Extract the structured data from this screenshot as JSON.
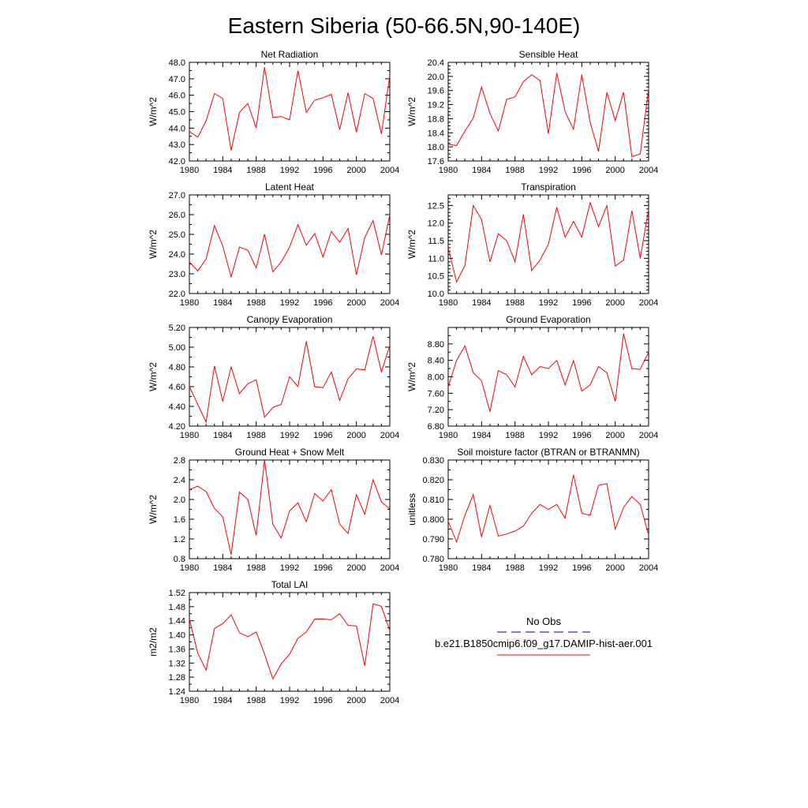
{
  "page_title": "Eastern Siberia (50-66.5N,90-140E)",
  "colors": {
    "model_line": "#ff0000",
    "obs_line": "#0000b4",
    "frame": "#000000"
  },
  "legend": {
    "obs_label": "No Obs",
    "model_label": "b.e21.B1850cmip6.f09_g17.DAMIP-hist-aer.001"
  },
  "chart_data": [
    {
      "type": "line",
      "title": "Net Radiation",
      "ylabel": "W/m^2",
      "xlim": [
        1980,
        2004
      ],
      "ylim": [
        42.0,
        48.0
      ],
      "xticks": [
        "1980",
        "1984",
        "1988",
        "1992",
        "1996",
        "2000",
        "2004"
      ],
      "yticks": [
        "42.0",
        "43.0",
        "44.0",
        "45.0",
        "46.0",
        "47.0",
        "48.0"
      ],
      "yticks_minor": 1,
      "x": [
        1980,
        1981,
        1982,
        1983,
        1984,
        1985,
        1986,
        1987,
        1988,
        1989,
        1990,
        1991,
        1992,
        1993,
        1994,
        1995,
        1996,
        1997,
        1998,
        1999,
        2000,
        2001,
        2002,
        2003,
        2004
      ],
      "series": [
        {
          "values": [
            43.8,
            43.45,
            44.45,
            46.1,
            45.8,
            42.65,
            44.95,
            45.5,
            44.0,
            47.7,
            44.65,
            44.7,
            44.5,
            47.5,
            44.95,
            45.7,
            45.85,
            46.05,
            43.9,
            46.15,
            43.75,
            46.1,
            45.8,
            43.65,
            47.2
          ]
        }
      ]
    },
    {
      "type": "line",
      "title": "Sensible Heat",
      "ylabel": "W/m^2",
      "xlim": [
        1980,
        2004
      ],
      "ylim": [
        17.6,
        20.4
      ],
      "xticks": [
        "1980",
        "1984",
        "1988",
        "1992",
        "1996",
        "2000",
        "2004"
      ],
      "yticks": [
        "17.6",
        "18.0",
        "18.4",
        "18.8",
        "19.2",
        "19.6",
        "20.0",
        "20.4"
      ],
      "yticks_minor": 3,
      "x": [
        1980,
        1981,
        1982,
        1983,
        1984,
        1985,
        1986,
        1987,
        1988,
        1989,
        1990,
        1991,
        1992,
        1993,
        1994,
        1995,
        1996,
        1997,
        1998,
        1999,
        2000,
        2001,
        2002,
        2003,
        2004
      ],
      "series": [
        {
          "values": [
            18.07,
            18.04,
            18.45,
            18.82,
            19.7,
            18.95,
            18.45,
            19.35,
            19.42,
            19.85,
            20.05,
            19.88,
            18.37,
            20.1,
            19.0,
            18.5,
            20.05,
            18.7,
            17.87,
            19.55,
            18.75,
            19.55,
            17.72,
            17.8,
            19.65
          ]
        }
      ]
    },
    {
      "type": "line",
      "title": "Latent Heat",
      "ylabel": "W/m^2",
      "xlim": [
        1980,
        2004
      ],
      "ylim": [
        22.0,
        27.0
      ],
      "xticks": [
        "1980",
        "1984",
        "1988",
        "1992",
        "1996",
        "2000",
        "2004"
      ],
      "yticks": [
        "22.0",
        "23.0",
        "24.0",
        "25.0",
        "26.0",
        "27.0"
      ],
      "yticks_minor": 1,
      "x": [
        1980,
        1981,
        1982,
        1983,
        1984,
        1985,
        1986,
        1987,
        1988,
        1989,
        1990,
        1991,
        1992,
        1993,
        1994,
        1995,
        1996,
        1997,
        1998,
        1999,
        2000,
        2001,
        2002,
        2003,
        2004
      ],
      "series": [
        {
          "values": [
            23.6,
            23.15,
            23.75,
            25.45,
            24.4,
            22.85,
            24.35,
            24.2,
            23.3,
            25.0,
            23.1,
            23.6,
            24.35,
            25.5,
            24.45,
            25.05,
            23.85,
            25.15,
            24.6,
            25.3,
            22.95,
            24.85,
            25.7,
            23.95,
            26.0
          ]
        }
      ]
    },
    {
      "type": "line",
      "title": "Transpiration",
      "ylabel": "W/m^2",
      "xlim": [
        1980,
        2004
      ],
      "ylim": [
        10.0,
        12.8
      ],
      "xticks": [
        "1980",
        "1984",
        "1988",
        "1992",
        "1996",
        "2000",
        "2004"
      ],
      "yticks": [
        "10.0",
        "10.5",
        "11.0",
        "11.5",
        "12.0",
        "12.5"
      ],
      "yticks_minor": 4,
      "x": [
        1980,
        1981,
        1982,
        1983,
        1984,
        1985,
        1986,
        1987,
        1988,
        1989,
        1990,
        1991,
        1992,
        1993,
        1994,
        1995,
        1996,
        1997,
        1998,
        1999,
        2000,
        2001,
        2002,
        2003,
        2004
      ],
      "series": [
        {
          "values": [
            11.3,
            10.33,
            10.8,
            12.5,
            12.1,
            10.9,
            11.7,
            11.5,
            10.9,
            12.25,
            10.65,
            10.95,
            11.4,
            12.45,
            11.6,
            12.05,
            11.6,
            12.58,
            11.9,
            12.5,
            10.78,
            10.95,
            12.35,
            11.0,
            12.4
          ]
        }
      ]
    },
    {
      "type": "line",
      "title": "Canopy Evaporation",
      "ylabel": "W/m^2",
      "xlim": [
        1980,
        2004
      ],
      "ylim": [
        4.2,
        5.2
      ],
      "xticks": [
        "1980",
        "1984",
        "1988",
        "1992",
        "1996",
        "2000",
        "2004"
      ],
      "yticks": [
        "4.20",
        "4.40",
        "4.60",
        "4.80",
        "5.00",
        "5.20"
      ],
      "yticks_minor": 1,
      "x": [
        1980,
        1981,
        1982,
        1983,
        1984,
        1985,
        1986,
        1987,
        1988,
        1989,
        1990,
        1991,
        1992,
        1993,
        1994,
        1995,
        1996,
        1997,
        1998,
        1999,
        2000,
        2001,
        2002,
        2003,
        2004
      ],
      "series": [
        {
          "values": [
            4.6,
            4.42,
            4.24,
            4.81,
            4.45,
            4.8,
            4.53,
            4.63,
            4.67,
            4.29,
            4.39,
            4.42,
            4.7,
            4.6,
            5.06,
            4.6,
            4.59,
            4.75,
            4.46,
            4.68,
            4.78,
            4.77,
            5.11,
            4.75,
            5.02
          ]
        }
      ]
    },
    {
      "type": "line",
      "title": "Ground Evaporation",
      "ylabel": "W/m^2",
      "xlim": [
        1980,
        2004
      ],
      "ylim": [
        6.8,
        9.2
      ],
      "xticks": [
        "1980",
        "1984",
        "1988",
        "1992",
        "1996",
        "2000",
        "2004"
      ],
      "yticks": [
        "6.80",
        "7.20",
        "7.60",
        "8.00",
        "8.40",
        "8.80"
      ],
      "yticks_minor": 1,
      "x": [
        1980,
        1981,
        1982,
        1983,
        1984,
        1985,
        1986,
        1987,
        1988,
        1989,
        1990,
        1991,
        1992,
        1993,
        1994,
        1995,
        1996,
        1997,
        1998,
        1999,
        2000,
        2001,
        2002,
        2003,
        2004
      ],
      "series": [
        {
          "values": [
            7.75,
            8.4,
            8.75,
            8.1,
            7.9,
            7.15,
            8.15,
            8.05,
            7.75,
            8.5,
            8.05,
            8.25,
            8.2,
            8.4,
            7.8,
            8.4,
            7.65,
            7.8,
            8.25,
            8.1,
            7.4,
            9.05,
            8.2,
            8.18,
            8.6
          ]
        }
      ]
    },
    {
      "type": "line",
      "title": "Ground Heat + Snow Melt",
      "ylabel": "W/m^2",
      "xlim": [
        1980,
        2004
      ],
      "ylim": [
        0.8,
        2.8
      ],
      "xticks": [
        "1980",
        "1984",
        "1988",
        "1992",
        "1996",
        "2000",
        "2004"
      ],
      "yticks": [
        "0.8",
        "1.2",
        "1.6",
        "2.0",
        "2.4",
        "2.8"
      ],
      "yticks_minor": 1,
      "x": [
        1980,
        1981,
        1982,
        1983,
        1984,
        1985,
        1986,
        1987,
        1988,
        1989,
        1990,
        1991,
        1992,
        1993,
        1994,
        1995,
        1996,
        1997,
        1998,
        1999,
        2000,
        2001,
        2002,
        2003,
        2004
      ],
      "series": [
        {
          "values": [
            2.2,
            2.27,
            2.16,
            1.82,
            1.65,
            0.88,
            2.15,
            2.0,
            1.27,
            2.8,
            1.5,
            1.22,
            1.77,
            1.93,
            1.55,
            2.12,
            1.97,
            2.2,
            1.5,
            1.31,
            2.1,
            1.7,
            2.4,
            1.95,
            1.81
          ]
        }
      ]
    },
    {
      "type": "line",
      "title": "Soil moisture factor (BTRAN or BTRANMN)",
      "ylabel": "unitless",
      "xlim": [
        1980,
        2004
      ],
      "ylim": [
        0.78,
        0.83
      ],
      "xticks": [
        "1980",
        "1984",
        "1988",
        "1992",
        "1996",
        "2000",
        "2004"
      ],
      "yticks": [
        "0.780",
        "0.790",
        "0.800",
        "0.810",
        "0.820",
        "0.830"
      ],
      "yticks_minor": 1,
      "x": [
        1980,
        1981,
        1982,
        1983,
        1984,
        1985,
        1986,
        1987,
        1988,
        1989,
        1990,
        1991,
        1992,
        1993,
        1994,
        1995,
        1996,
        1997,
        1998,
        1999,
        2000,
        2001,
        2002,
        2003,
        2004
      ],
      "series": [
        {
          "values": [
            0.799,
            0.7885,
            0.802,
            0.8125,
            0.791,
            0.807,
            0.7915,
            0.7925,
            0.794,
            0.7965,
            0.803,
            0.8075,
            0.805,
            0.8075,
            0.8005,
            0.8225,
            0.803,
            0.802,
            0.8172,
            0.818,
            0.795,
            0.806,
            0.8115,
            0.8075,
            0.792
          ]
        }
      ]
    },
    {
      "type": "line",
      "title": "Total LAI",
      "ylabel": "m2/m2",
      "xlim": [
        1980,
        2004
      ],
      "ylim": [
        1.24,
        1.52
      ],
      "xticks": [
        "1980",
        "1984",
        "1988",
        "1992",
        "1996",
        "2000",
        "2004"
      ],
      "yticks": [
        "1.24",
        "1.28",
        "1.32",
        "1.36",
        "1.40",
        "1.44",
        "1.48",
        "1.52"
      ],
      "yticks_minor": 1,
      "x": [
        1980,
        1981,
        1982,
        1983,
        1984,
        1985,
        1986,
        1987,
        1988,
        1989,
        1990,
        1991,
        1992,
        1993,
        1994,
        1995,
        1996,
        1997,
        1998,
        1999,
        2000,
        2001,
        2002,
        2003,
        2004
      ],
      "series": [
        {
          "values": [
            1.445,
            1.348,
            1.3,
            1.418,
            1.432,
            1.457,
            1.406,
            1.395,
            1.408,
            1.345,
            1.275,
            1.318,
            1.345,
            1.39,
            1.408,
            1.445,
            1.445,
            1.443,
            1.46,
            1.427,
            1.425,
            1.312,
            1.488,
            1.481,
            1.412
          ]
        }
      ]
    }
  ]
}
